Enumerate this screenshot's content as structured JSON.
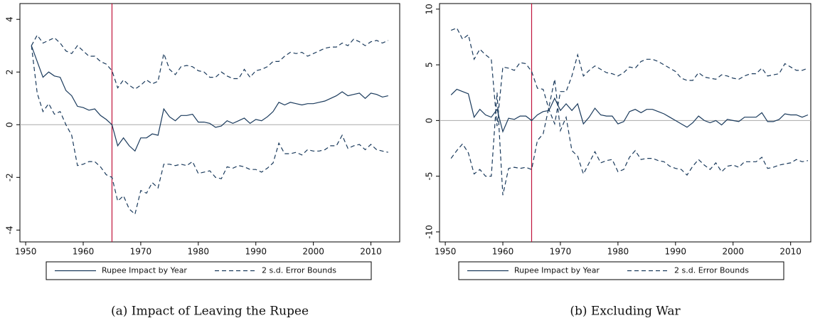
{
  "chart_data": [
    {
      "type": "line",
      "caption": "(a) Impact of Leaving the Rupee",
      "x": [
        1951,
        1952,
        1953,
        1954,
        1955,
        1956,
        1957,
        1958,
        1959,
        1960,
        1961,
        1962,
        1963,
        1964,
        1965,
        1966,
        1967,
        1968,
        1969,
        1970,
        1971,
        1972,
        1973,
        1974,
        1975,
        1976,
        1977,
        1978,
        1979,
        1980,
        1981,
        1982,
        1983,
        1984,
        1985,
        1986,
        1987,
        1988,
        1989,
        1990,
        1991,
        1992,
        1993,
        1994,
        1995,
        1996,
        1997,
        1998,
        1999,
        2000,
        2001,
        2002,
        2003,
        2004,
        2005,
        2006,
        2007,
        2008,
        2009,
        2010,
        2011,
        2012,
        2013
      ],
      "xlim": [
        1949,
        2015
      ],
      "xticks": [
        1950,
        1960,
        1970,
        1980,
        1990,
        2000,
        2010
      ],
      "ylim": [
        -4.45,
        4.6
      ],
      "yticks": [
        -4,
        -2,
        0,
        2,
        4
      ],
      "hline": 0,
      "hline_color": "#aaaaaa",
      "vline": 1965,
      "vline_color": "#c0143c",
      "series": [
        {
          "name": "Rupee Impact by Year",
          "color": "#1a3a5c",
          "dashed": false,
          "values": [
            3.0,
            2.4,
            1.8,
            2.0,
            1.85,
            1.8,
            1.3,
            1.1,
            0.7,
            0.65,
            0.55,
            0.6,
            0.35,
            0.2,
            0.0,
            -0.8,
            -0.5,
            -0.8,
            -1.0,
            -0.5,
            -0.5,
            -0.35,
            -0.4,
            0.6,
            0.3,
            0.15,
            0.35,
            0.35,
            0.4,
            0.1,
            0.1,
            0.05,
            -0.1,
            -0.05,
            0.15,
            0.05,
            0.15,
            0.25,
            0.05,
            0.2,
            0.15,
            0.3,
            0.5,
            0.85,
            0.75,
            0.85,
            0.8,
            0.75,
            0.8,
            0.8,
            0.85,
            0.9,
            1.0,
            1.1,
            1.25,
            1.1,
            1.15,
            1.2,
            1.0,
            1.2,
            1.15,
            1.05,
            1.1
          ]
        },
        {
          "name": "2 s.d. Error Bounds",
          "color": "#1a3a5c",
          "dashed": true,
          "values": [
            3.0,
            3.4,
            3.1,
            3.2,
            3.3,
            3.1,
            2.8,
            2.7,
            3.0,
            2.8,
            2.6,
            2.6,
            2.4,
            2.3,
            2.05,
            1.4,
            1.7,
            1.5,
            1.35,
            1.5,
            1.7,
            1.55,
            1.65,
            2.7,
            2.1,
            1.9,
            2.2,
            2.25,
            2.2,
            2.05,
            2.0,
            1.8,
            1.8,
            2.0,
            1.85,
            1.75,
            1.75,
            2.1,
            1.8,
            2.05,
            2.1,
            2.2,
            2.4,
            2.4,
            2.6,
            2.75,
            2.7,
            2.75,
            2.6,
            2.7,
            2.8,
            2.9,
            2.95,
            2.95,
            3.1,
            3.0,
            3.25,
            3.15,
            3.0,
            3.15,
            3.2,
            3.1,
            3.2
          ]
        },
        {
          "color": "#1a3a5c",
          "dashed": true,
          "values": [
            3.0,
            1.2,
            0.5,
            0.8,
            0.4,
            0.5,
            0.0,
            -0.4,
            -1.55,
            -1.5,
            -1.4,
            -1.4,
            -1.6,
            -1.9,
            -2.0,
            -2.9,
            -2.7,
            -3.2,
            -3.4,
            -2.5,
            -2.6,
            -2.2,
            -2.4,
            -1.5,
            -1.5,
            -1.55,
            -1.5,
            -1.55,
            -1.4,
            -1.85,
            -1.8,
            -1.75,
            -2.0,
            -2.05,
            -1.6,
            -1.65,
            -1.55,
            -1.6,
            -1.7,
            -1.7,
            -1.8,
            -1.65,
            -1.45,
            -0.7,
            -1.1,
            -1.1,
            -1.05,
            -1.15,
            -0.95,
            -1.0,
            -1.0,
            -0.95,
            -0.8,
            -0.8,
            -0.4,
            -0.9,
            -0.8,
            -0.75,
            -0.95,
            -0.75,
            -0.95,
            -1.0,
            -1.05
          ]
        }
      ]
    },
    {
      "type": "line",
      "caption": "(b) Excluding War",
      "x": [
        1951,
        1952,
        1953,
        1954,
        1955,
        1956,
        1957,
        1958,
        1959,
        1960,
        1961,
        1962,
        1963,
        1964,
        1965,
        1966,
        1967,
        1968,
        1969,
        1970,
        1971,
        1972,
        1973,
        1974,
        1975,
        1976,
        1977,
        1978,
        1979,
        1980,
        1981,
        1982,
        1983,
        1984,
        1985,
        1986,
        1987,
        1988,
        1989,
        1990,
        1991,
        1992,
        1993,
        1994,
        1995,
        1996,
        1997,
        1998,
        1999,
        2000,
        2001,
        2002,
        2003,
        2004,
        2005,
        2006,
        2007,
        2008,
        2009,
        2010,
        2011,
        2012,
        2013
      ],
      "xlim": [
        1949,
        2013.5
      ],
      "xticks": [
        1950,
        1960,
        1970,
        1980,
        1990,
        2000,
        2010
      ],
      "ylim": [
        -10.9,
        10.5
      ],
      "yticks": [
        -10,
        -5,
        0,
        5,
        10
      ],
      "hline": 0,
      "hline_color": "#aaaaaa",
      "vline": 1965,
      "vline_color": "#c0143c",
      "series": [
        {
          "name": "Rupee Impact by Year",
          "color": "#1a3a5c",
          "dashed": false,
          "values": [
            2.3,
            2.8,
            2.6,
            2.4,
            0.3,
            1.0,
            0.5,
            0.3,
            1.0,
            -1.0,
            0.2,
            0.1,
            0.4,
            0.4,
            0.0,
            0.5,
            0.8,
            0.9,
            2.0,
            0.9,
            1.5,
            0.9,
            1.5,
            -0.3,
            0.3,
            1.1,
            0.5,
            0.4,
            0.4,
            -0.3,
            -0.1,
            0.8,
            1.0,
            0.7,
            1.0,
            1.0,
            0.8,
            0.6,
            0.3,
            0.0,
            -0.3,
            -0.6,
            -0.2,
            0.4,
            0.0,
            -0.2,
            0.0,
            -0.4,
            0.1,
            0.0,
            -0.1,
            0.3,
            0.3,
            0.3,
            0.7,
            -0.1,
            -0.1,
            0.1,
            0.6,
            0.5,
            0.5,
            0.3,
            0.5
          ]
        },
        {
          "name": "2 s.d. Error Bounds",
          "color": "#1a3a5c",
          "dashed": true,
          "values": [
            8.1,
            8.3,
            7.3,
            7.7,
            5.5,
            6.4,
            5.9,
            5.5,
            -0.5,
            4.8,
            4.7,
            4.5,
            5.2,
            5.1,
            4.4,
            2.9,
            2.8,
            1.0,
            -0.3,
            2.6,
            2.6,
            4.0,
            5.9,
            4.0,
            4.5,
            4.9,
            4.6,
            4.3,
            4.2,
            4.0,
            4.3,
            4.8,
            4.7,
            5.3,
            5.5,
            5.5,
            5.3,
            5.0,
            4.7,
            4.4,
            3.8,
            3.6,
            3.6,
            4.3,
            3.9,
            3.8,
            3.7,
            4.1,
            4.0,
            3.8,
            3.7,
            4.0,
            4.2,
            4.2,
            4.7,
            4.0,
            4.1,
            4.2,
            5.1,
            4.8,
            4.5,
            4.5,
            4.7
          ]
        },
        {
          "color": "#1a3a5c",
          "dashed": true,
          "values": [
            -3.4,
            -2.7,
            -2.1,
            -2.9,
            -4.8,
            -4.4,
            -5.0,
            -5.0,
            2.5,
            -6.7,
            -4.3,
            -4.2,
            -4.3,
            -4.2,
            -4.4,
            -1.8,
            -1.2,
            1.2,
            3.7,
            -0.9,
            0.3,
            -2.7,
            -3.2,
            -4.8,
            -3.8,
            -2.8,
            -3.8,
            -3.6,
            -3.5,
            -4.6,
            -4.4,
            -3.3,
            -2.7,
            -3.5,
            -3.4,
            -3.4,
            -3.6,
            -3.7,
            -4.1,
            -4.3,
            -4.4,
            -4.9,
            -4.1,
            -3.5,
            -4.0,
            -4.4,
            -3.8,
            -4.6,
            -4.1,
            -4.0,
            -4.2,
            -3.7,
            -3.7,
            -3.7,
            -3.3,
            -4.3,
            -4.2,
            -4.0,
            -3.9,
            -3.8,
            -3.5,
            -3.7,
            -3.6
          ]
        }
      ]
    }
  ]
}
